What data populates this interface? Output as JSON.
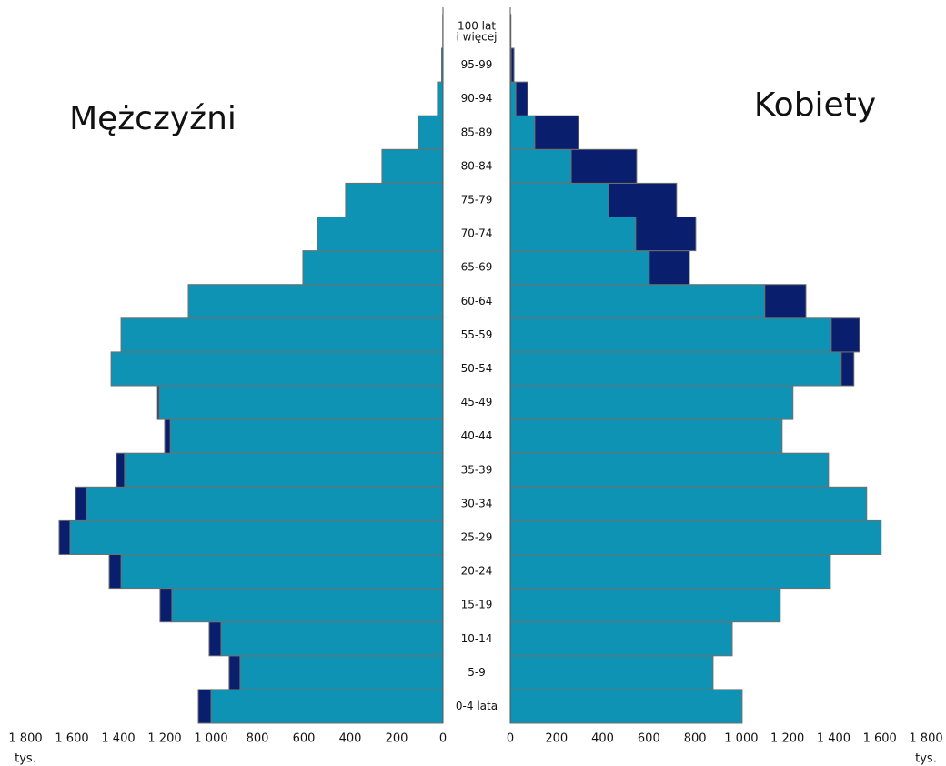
{
  "chart_data": {
    "type": "pyramid",
    "categories": [
      "0-4 lata",
      "5-9",
      "10-14",
      "15-19",
      "20-24",
      "25-29",
      "30-34",
      "35-39",
      "40-44",
      "45-49",
      "50-54",
      "55-59",
      "60-64",
      "65-69",
      "70-74",
      "75-79",
      "80-84",
      "85-89",
      "90-94",
      "95-99",
      "100 lat\ni więcej"
    ],
    "unit": "tys.",
    "xlim": [
      0,
      1800
    ],
    "xticks": [
      0,
      200,
      400,
      600,
      800,
      {
        "value": 1000,
        "label": "1 000"
      },
      {
        "value": 1200,
        "label": "1 200"
      },
      {
        "value": 1400,
        "label": "1 400"
      },
      {
        "value": 1600,
        "label": "1 600"
      },
      {
        "value": 1800,
        "label": "1 800"
      }
    ],
    "left": {
      "title": "Mężczyźni",
      "series": [
        {
          "color": "#0f93b4",
          "values": [
            1000,
            875,
            957,
            1169,
            1388,
            1608,
            1537,
            1373,
            1176,
            1224,
            1431,
            1388,
            1098,
            604,
            541,
            420,
            263,
            106,
            24,
            6,
            1
          ]
        },
        {
          "color": "#0a1e6e",
          "values": [
            55,
            47,
            51,
            51,
            51,
            47,
            47,
            35,
            24,
            7,
            0,
            0,
            0,
            0,
            0,
            0,
            0,
            0,
            0,
            0,
            0
          ]
        }
      ]
    },
    "right": {
      "title": "Kobiety",
      "series": [
        {
          "color": "#0f93b4",
          "values": [
            1004,
            878,
            961,
            1169,
            1386,
            1606,
            1543,
            1378,
            1177,
            1224,
            1433,
            1390,
            1102,
            602,
            543,
            425,
            264,
            106,
            24,
            4,
            1
          ]
        },
        {
          "color": "#0a1e6e",
          "values": [
            0,
            0,
            0,
            0,
            0,
            0,
            0,
            0,
            0,
            0,
            55,
            122,
            178,
            174,
            260,
            295,
            283,
            189,
            51,
            12,
            2
          ]
        }
      ]
    }
  }
}
